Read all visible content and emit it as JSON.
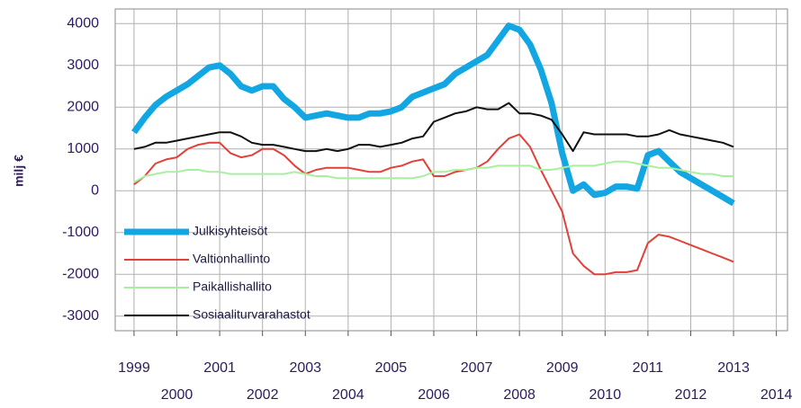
{
  "chart_data": {
    "type": "line",
    "ylabel": "milj €",
    "x": [
      1999,
      1999.25,
      1999.5,
      1999.75,
      2000,
      2000.25,
      2000.5,
      2000.75,
      2001,
      2001.25,
      2001.5,
      2001.75,
      2002,
      2002.25,
      2002.5,
      2002.75,
      2003,
      2003.25,
      2003.5,
      2003.75,
      2004,
      2004.25,
      2004.5,
      2004.75,
      2005,
      2005.25,
      2005.5,
      2005.75,
      2006,
      2006.25,
      2006.5,
      2006.75,
      2007,
      2007.25,
      2007.5,
      2007.75,
      2008,
      2008.25,
      2008.5,
      2008.75,
      2009,
      2009.25,
      2009.5,
      2009.75,
      2010,
      2010.25,
      2010.5,
      2010.75,
      2011,
      2011.25,
      2011.5,
      2011.75,
      2012,
      2012.25,
      2012.5,
      2012.75,
      2013
    ],
    "series": [
      {
        "name": "Julkisyhteisöt",
        "color": "#12a7e3",
        "width": 7,
        "values": [
          1400,
          1750,
          2050,
          2250,
          2400,
          2550,
          2750,
          2950,
          3000,
          2800,
          2500,
          2400,
          2500,
          2500,
          2200,
          2000,
          1750,
          1800,
          1850,
          1800,
          1750,
          1750,
          1850,
          1850,
          1900,
          2000,
          2250,
          2350,
          2450,
          2550,
          2800,
          2950,
          3100,
          3250,
          3600,
          3950,
          3850,
          3500,
          2900,
          2100,
          900,
          0,
          150,
          -100,
          -50,
          100,
          100,
          50,
          850,
          950,
          700,
          450,
          300,
          150,
          0,
          -150,
          -300
        ]
      },
      {
        "name": "Valtionhallinto",
        "color": "#e0413b",
        "width": 2,
        "values": [
          150,
          350,
          650,
          750,
          800,
          1000,
          1100,
          1150,
          1150,
          900,
          800,
          850,
          1000,
          1000,
          850,
          600,
          400,
          500,
          550,
          550,
          550,
          500,
          450,
          450,
          550,
          600,
          700,
          750,
          350,
          350,
          450,
          500,
          550,
          700,
          1000,
          1250,
          1350,
          1050,
          500,
          0,
          -500,
          -1500,
          -1800,
          -2000,
          -2000,
          -1950,
          -1950,
          -1900,
          -1250,
          -1050,
          -1100,
          -1200,
          -1300,
          -1400,
          -1500,
          -1600,
          -1700
        ]
      },
      {
        "name": "Paikallishallito",
        "color": "#a8f0a0",
        "width": 2,
        "values": [
          200,
          350,
          400,
          450,
          450,
          500,
          500,
          450,
          450,
          400,
          400,
          400,
          400,
          400,
          400,
          450,
          400,
          350,
          350,
          300,
          300,
          300,
          300,
          300,
          300,
          300,
          300,
          350,
          450,
          450,
          500,
          500,
          550,
          550,
          600,
          600,
          600,
          600,
          500,
          500,
          550,
          600,
          600,
          600,
          650,
          700,
          700,
          650,
          600,
          550,
          550,
          500,
          450,
          400,
          400,
          350,
          350
        ]
      },
      {
        "name": "Sosiaaliturvarahastot",
        "color": "#111111",
        "width": 2,
        "values": [
          1000,
          1050,
          1150,
          1150,
          1200,
          1250,
          1300,
          1350,
          1400,
          1400,
          1300,
          1150,
          1100,
          1100,
          1050,
          1000,
          950,
          950,
          1000,
          950,
          1000,
          1100,
          1100,
          1050,
          1100,
          1150,
          1250,
          1300,
          1650,
          1750,
          1850,
          1900,
          2000,
          1950,
          1950,
          2100,
          1850,
          1850,
          1800,
          1700,
          1350,
          950,
          1400,
          1350,
          1350,
          1350,
          1350,
          1300,
          1300,
          1350,
          1450,
          1350,
          1300,
          1250,
          1200,
          1150,
          1050
        ]
      }
    ],
    "xlim": [
      1998.56,
      2014.26
    ],
    "xticks": [
      1999,
      2000,
      2001,
      2002,
      2003,
      2004,
      2005,
      2006,
      2007,
      2008,
      2009,
      2010,
      2011,
      2012,
      2013,
      2014
    ],
    "ylim": [
      -3350,
      4350
    ],
    "yticks": [
      -3000,
      -2000,
      -1000,
      0,
      1000,
      2000,
      3000,
      4000
    ],
    "grid": true,
    "legend": "lower left"
  }
}
